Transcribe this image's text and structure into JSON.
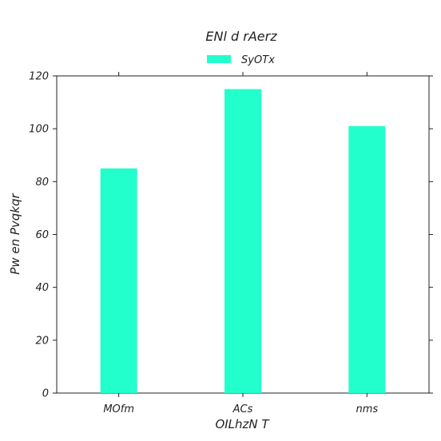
{
  "chart_data": {
    "type": "bar",
    "title": "ENl d  rAerz",
    "xlabel": "OILhzN T",
    "ylabel": "Pw   en Pvqkqr",
    "categories": [
      "MOfm",
      "ACs",
      "nms"
    ],
    "series": [
      {
        "name": "SyOTx",
        "values": [
          85,
          115,
          101
        ],
        "color": "#22ffcc"
      }
    ],
    "ylim": [
      0,
      120
    ],
    "yticks": [
      0,
      20,
      40,
      60,
      80,
      100,
      120
    ],
    "grid": false,
    "legend": "top-center"
  }
}
